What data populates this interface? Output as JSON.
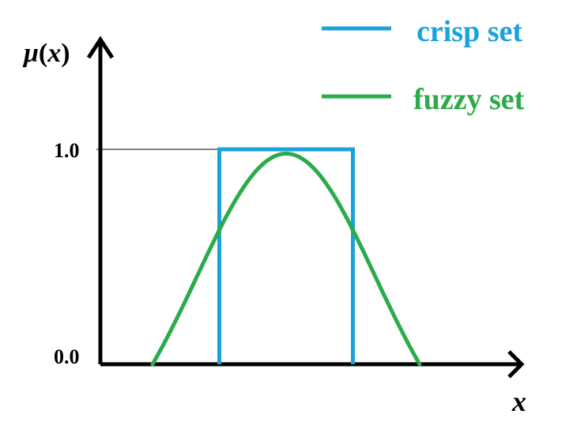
{
  "colors": {
    "crisp": "#1aa3db",
    "fuzzy": "#2bab4a",
    "axis": "#000000",
    "background": "#ffffff"
  },
  "legend": {
    "crisp_label": "crisp set",
    "fuzzy_label": "fuzzy set"
  },
  "axes": {
    "y_label_mu": "μ",
    "y_label_open": "(",
    "y_label_var": "x",
    "y_label_close": ")",
    "x_label": "x",
    "tick_top": "1.0",
    "tick_bottom": "0.0"
  },
  "chart_data": {
    "type": "line",
    "ylim": [
      0,
      1
    ],
    "series": [
      {
        "name": "crisp set",
        "shape": "rectangular",
        "x": [
          0.25,
          0.25,
          0.75,
          0.75
        ],
        "y": [
          0,
          1,
          1,
          0
        ]
      },
      {
        "name": "fuzzy set",
        "shape": "bell",
        "x": [
          0.0,
          0.5,
          1.0
        ],
        "y": [
          0,
          0.98,
          0
        ]
      }
    ]
  }
}
